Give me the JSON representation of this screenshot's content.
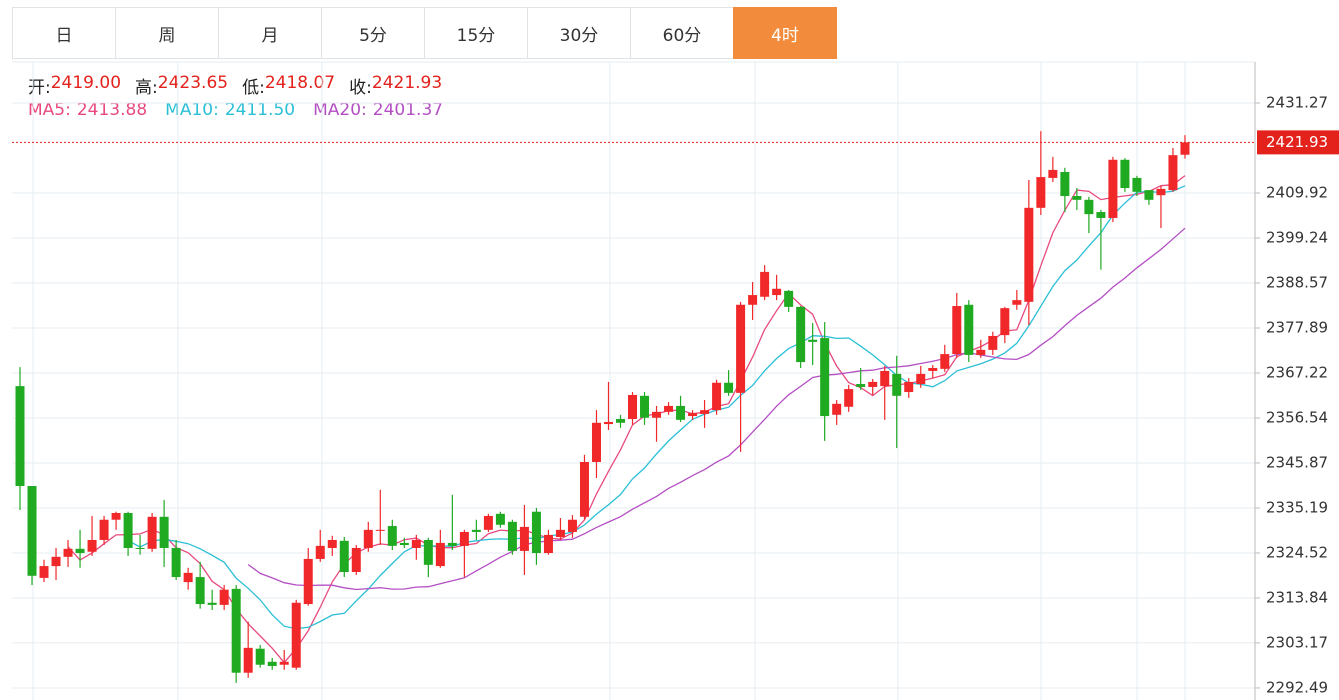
{
  "tabs": {
    "items": [
      "日",
      "周",
      "月",
      "5分",
      "15分",
      "30分",
      "60分",
      "4时"
    ],
    "active": 7
  },
  "info": [
    {
      "label": "开:",
      "value": 2419,
      "value_label": "2419.00"
    },
    {
      "label": "高:",
      "value": 2423.65
    },
    {
      "label": "低:",
      "value": 2418.07
    },
    {
      "label": "收:",
      "value": 2421.93
    }
  ],
  "chart_data": {
    "type": "candlestick",
    "up_color": "#f0282a",
    "down_color": "#1faa22",
    "ylim": [
      2289.63,
      2441.0
    ],
    "yticks": [
      2431.27,
      2409.92,
      2399.24,
      2388.57,
      2377.89,
      2367.22,
      2356.54,
      2345.87,
      2335.19,
      2324.52,
      2313.84,
      2303.17,
      2292.49
    ],
    "grid": true,
    "last_price": 2421.93,
    "ma": [
      {
        "name": "MA5:",
        "period": 5,
        "value": 2413.88,
        "color": "#e84a7f"
      },
      {
        "name": "MA10:",
        "period": 10,
        "value": 2411.5,
        "value_label": "2411.50",
        "color": "#2bbfd6"
      },
      {
        "name": "MA20:",
        "period": 20,
        "value": 2401.37,
        "color": "#b44fc4"
      }
    ],
    "open": [
      2364.1,
      2340.4,
      2318.6,
      2321.4,
      2323.6,
      2325.5,
      2324.8,
      2327.6,
      2332.4,
      2334.0,
      2325.7,
      2325.5,
      2333.1,
      2325.7,
      2317.6,
      2318.8,
      2312.7,
      2312.2,
      2316.0,
      2296.1,
      2301.8,
      2298.7,
      2298.0,
      2297.3,
      2312.4,
      2323.1,
      2325.7,
      2327.4,
      2320.0,
      2325.7,
      2329.8,
      2330.9,
      2326.9,
      2325.7,
      2327.6,
      2321.4,
      2326.9,
      2326.2,
      2330.0,
      2330.0,
      2333.8,
      2331.9,
      2325.0,
      2334.3,
      2324.5,
      2328.3,
      2329.5,
      2333.1,
      2346.1,
      2355.1,
      2356.3,
      2356.3,
      2361.8,
      2356.6,
      2358.0,
      2359.4,
      2357.0,
      2357.5,
      2358.4,
      2364.9,
      2362.5,
      2383.4,
      2385.3,
      2385.7,
      2386.7,
      2382.9,
      2375.1,
      2375.5,
      2357.3,
      2359.2,
      2364.6,
      2363.9,
      2364.1,
      2367.0,
      2362.7,
      2364.6,
      2367.7,
      2368.2,
      2371.7,
      2383.4,
      2371.5,
      2372.7,
      2376.2,
      2383.4,
      2384.1,
      2406.4,
      2413.5,
      2414.9,
      2409.2,
      2408.3,
      2405.4,
      2404.0,
      2417.8,
      2413.5,
      2410.6,
      2409.4,
      2410.6,
      2419
    ],
    "high": [
      2368.6,
      2340.4,
      2322.9,
      2325.7,
      2327.6,
      2330.0,
      2333.3,
      2333.3,
      2334.3,
      2334.3,
      2328.8,
      2334.0,
      2337.1,
      2327.6,
      2321.0,
      2322.4,
      2315.8,
      2316.9,
      2316.9,
      2308.2,
      2302.7,
      2299.6,
      2301.5,
      2313.4,
      2325.7,
      2330.0,
      2328.6,
      2328.3,
      2326.4,
      2331.9,
      2339.5,
      2332.4,
      2328.1,
      2328.8,
      2328.1,
      2330.0,
      2338.3,
      2330.0,
      2332.4,
      2333.8,
      2334.3,
      2332.4,
      2335.9,
      2335.2,
      2330.0,
      2332.8,
      2333.5,
      2347.8,
      2358.4,
      2365.1,
      2357.3,
      2362.7,
      2362.7,
      2359.4,
      2360.3,
      2361.8,
      2358.4,
      2360.8,
      2365.6,
      2367.9,
      2384.1,
      2388.8,
      2392.8,
      2390.5,
      2386.9,
      2383.1,
      2379.1,
      2379.3,
      2360.8,
      2364.4,
      2368.4,
      2365.8,
      2368.9,
      2371.3,
      2366.0,
      2368.9,
      2369.1,
      2373.9,
      2386.2,
      2384.5,
      2375.1,
      2377.0,
      2382.9,
      2386.9,
      2413.0,
      2424.6,
      2418.5,
      2415.9,
      2411.1,
      2409.0,
      2405.9,
      2418.5,
      2418.2,
      2414.0,
      2410.6,
      2411.6,
      2420.6,
      2423.65
    ],
    "low": [
      2334.7,
      2316.9,
      2317.6,
      2318.1,
      2321.2,
      2321.0,
      2323.8,
      2326.4,
      2330.0,
      2323.8,
      2324.1,
      2324.8,
      2321.2,
      2318.1,
      2315.8,
      2311.3,
      2311.0,
      2311.0,
      2293.7,
      2294.9,
      2297.3,
      2296.8,
      2296.8,
      2296.8,
      2312.0,
      2322.4,
      2323.8,
      2318.8,
      2319.3,
      2324.8,
      2326.4,
      2325.2,
      2325.7,
      2322.9,
      2318.8,
      2321.0,
      2325.2,
      2318.8,
      2327.6,
      2329.5,
      2330.5,
      2324.1,
      2319.3,
      2321.7,
      2324.1,
      2327.6,
      2328.1,
      2332.4,
      2342.3,
      2353.7,
      2354.2,
      2354.9,
      2354.9,
      2350.9,
      2357.3,
      2355.6,
      2356.1,
      2354.2,
      2357.3,
      2361.8,
      2348.5,
      2379.8,
      2384.5,
      2384.5,
      2381.7,
      2368.4,
      2369.1,
      2351.1,
      2354.9,
      2358.0,
      2363.2,
      2362.0,
      2356.1,
      2349.4,
      2361.3,
      2363.7,
      2366.0,
      2367.5,
      2370.8,
      2369.8,
      2370.8,
      2371.5,
      2374.3,
      2382.2,
      2378.6,
      2404.7,
      2412.5,
      2405.4,
      2405.9,
      2400.4,
      2391.7,
      2403.0,
      2410.2,
      2409.2,
      2407.1,
      2401.6,
      2410.2,
      2418.07
    ],
    "close": [
      2340.4,
      2319.1,
      2321.4,
      2323.6,
      2325.5,
      2324.5,
      2327.6,
      2332.4,
      2334.0,
      2325.7,
      2325.5,
      2333.1,
      2325.7,
      2318.8,
      2319.8,
      2312.4,
      2312.2,
      2315.8,
      2296.1,
      2302.0,
      2298.0,
      2297.7,
      2298.7,
      2312.7,
      2323.1,
      2326.2,
      2327.6,
      2320.0,
      2325.7,
      2330.0,
      2330.0,
      2326.2,
      2326.4,
      2327.6,
      2321.7,
      2326.9,
      2326.2,
      2329.5,
      2329.5,
      2333.3,
      2331.2,
      2325.0,
      2330.7,
      2324.5,
      2328.8,
      2330.0,
      2332.4,
      2346.1,
      2355.4,
      2355.6,
      2355.4,
      2362.0,
      2356.6,
      2358.0,
      2359.4,
      2356.1,
      2357.7,
      2358.4,
      2364.9,
      2362.5,
      2383.4,
      2385.7,
      2391.2,
      2387.2,
      2382.9,
      2369.8,
      2374.6,
      2357.0,
      2359.9,
      2363.4,
      2363.9,
      2365.1,
      2367.7,
      2361.8,
      2365.1,
      2367.0,
      2368.4,
      2371.7,
      2383.1,
      2371.5,
      2372.7,
      2376.0,
      2382.6,
      2384.5,
      2406.4,
      2413.7,
      2415.4,
      2409.2,
      2408.3,
      2404.9,
      2404.0,
      2417.8,
      2411.1,
      2410.2,
      2408.3,
      2410.9,
      2418.9,
      2421.93
    ]
  }
}
